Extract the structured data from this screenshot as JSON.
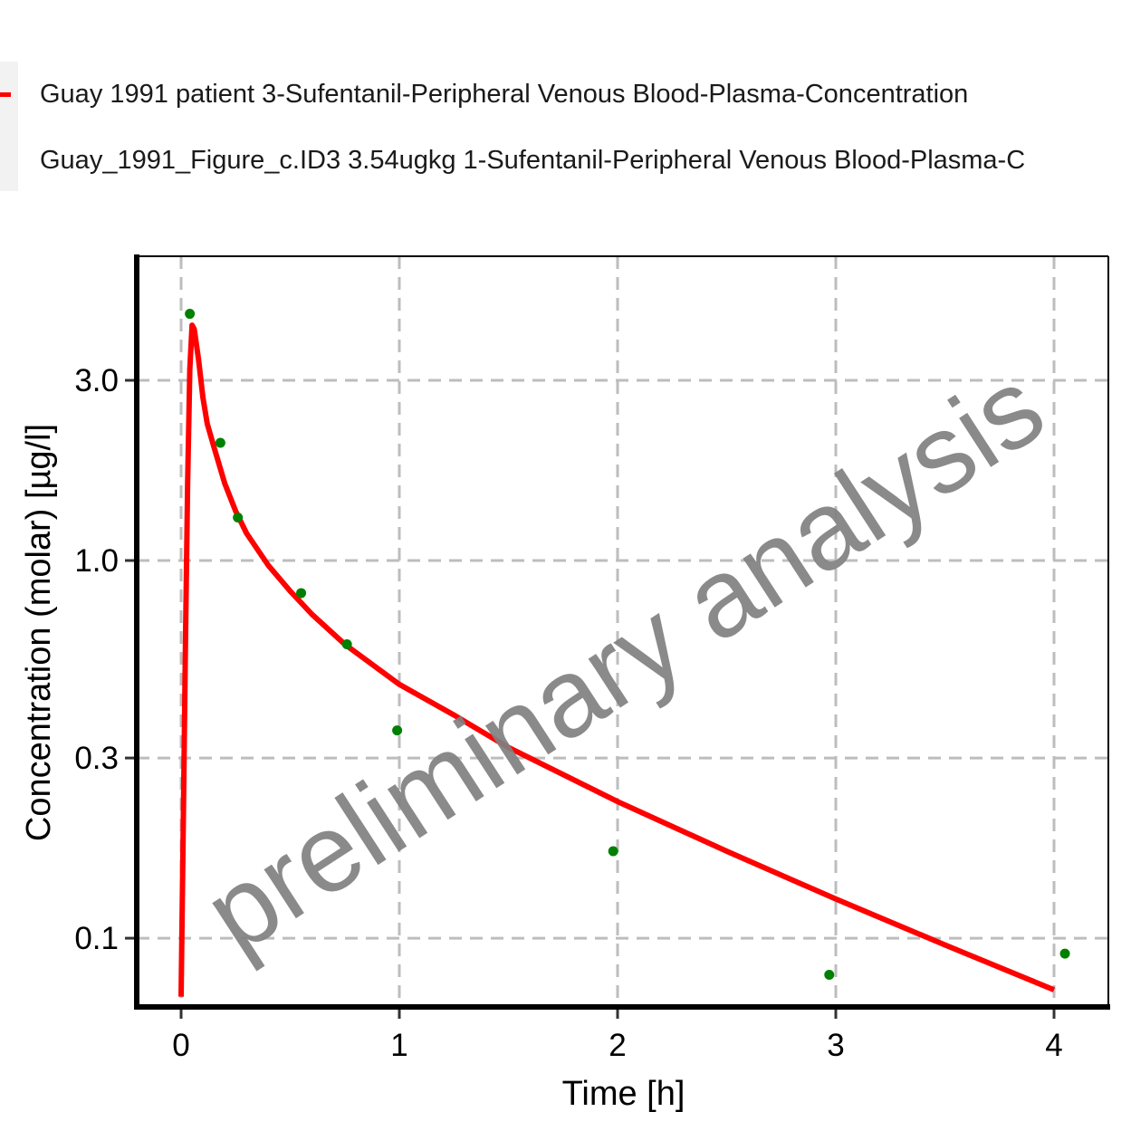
{
  "chart_data": {
    "type": "line",
    "xlabel": "Time [h]",
    "ylabel": "Concentration (molar) [µg/l]",
    "y_scale": "log",
    "xlim": [
      -0.2,
      4.25
    ],
    "ylim": [
      0.07,
      5.2
    ],
    "x_ticks": [
      0,
      1,
      2,
      3,
      4
    ],
    "x_tick_labels": [
      "0",
      "1",
      "2",
      "3",
      "4"
    ],
    "y_ticks": [
      0.1,
      0.3,
      1.0,
      3.0
    ],
    "y_tick_labels": [
      "0.1",
      "0.3",
      "1.0",
      "3.0"
    ],
    "grid": true,
    "grid_style": "dashed",
    "legend_position": "top-left",
    "watermark": "preliminary analysis",
    "series": [
      {
        "name": "Guay 1991 patient 3-Sufentanil-Peripheral Venous Blood-Plasma-Concentration",
        "kind": "line",
        "color": "#ff0000",
        "x": [
          0.0,
          0.01,
          0.02,
          0.03,
          0.04,
          0.05,
          0.06,
          0.08,
          0.1,
          0.12,
          0.15,
          0.2,
          0.25,
          0.3,
          0.4,
          0.5,
          0.6,
          0.75,
          1.0,
          1.25,
          1.5,
          2.0,
          2.5,
          3.0,
          3.5,
          4.0
        ],
        "y": [
          0.07,
          0.2,
          0.6,
          1.6,
          3.2,
          4.2,
          4.1,
          3.4,
          2.7,
          2.3,
          2.0,
          1.6,
          1.35,
          1.18,
          0.97,
          0.83,
          0.72,
          0.6,
          0.47,
          0.39,
          0.32,
          0.23,
          0.17,
          0.127,
          0.096,
          0.073
        ]
      },
      {
        "name": "Guay_1991_Figure_c.ID3 3.54ugkg 1-Sufentanil-Peripheral Venous Blood-Plasma-C",
        "kind": "scatter",
        "color": "#008000",
        "x": [
          0.04,
          0.18,
          0.26,
          0.55,
          0.76,
          0.99,
          1.98,
          2.97,
          4.05
        ],
        "y": [
          4.5,
          2.05,
          1.3,
          0.82,
          0.6,
          0.355,
          0.17,
          0.08,
          0.091
        ]
      }
    ]
  }
}
